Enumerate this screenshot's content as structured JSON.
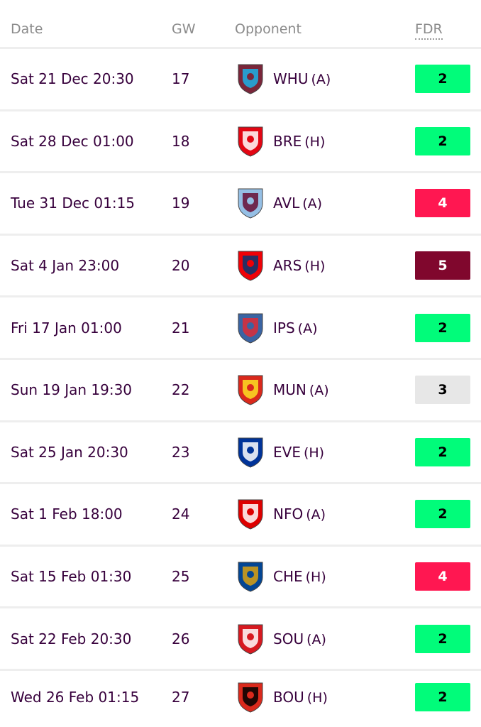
{
  "headers": {
    "date": "Date",
    "gw": "GW",
    "opponent": "Opponent",
    "fdr": "FDR"
  },
  "fdr_colors": {
    "2": "#01fc7a",
    "3": "#e7e7e7",
    "4": "#ff1751",
    "5": "#80072d"
  },
  "fdr_text": {
    "2": "#000000",
    "3": "#000000",
    "4": "#ffffff",
    "5": "#ffffff"
  },
  "fixtures": [
    {
      "date": "Sat 21 Dec 20:30",
      "gw": "17",
      "team": "WHU",
      "venue": "(A)",
      "fdr": "2",
      "badge": "west-ham-badge-icon",
      "badge_color": "#7a263a",
      "badge_accent": "#1bb1e7"
    },
    {
      "date": "Sat 28 Dec 01:00",
      "gw": "18",
      "team": "BRE",
      "venue": "(H)",
      "fdr": "2",
      "badge": "brentford-badge-icon",
      "badge_color": "#e30613",
      "badge_accent": "#ffffff"
    },
    {
      "date": "Tue 31 Dec 01:15",
      "gw": "19",
      "team": "AVL",
      "venue": "(A)",
      "fdr": "4",
      "badge": "aston-villa-badge-icon",
      "badge_color": "#95bfe5",
      "badge_accent": "#670e36"
    },
    {
      "date": "Sat 4 Jan 23:00",
      "gw": "20",
      "team": "ARS",
      "venue": "(H)",
      "fdr": "5",
      "badge": "arsenal-badge-icon",
      "badge_color": "#ef0107",
      "badge_accent": "#063672"
    },
    {
      "date": "Fri 17 Jan 01:00",
      "gw": "21",
      "team": "IPS",
      "venue": "(A)",
      "fdr": "2",
      "badge": "ipswich-badge-icon",
      "badge_color": "#3a64a3",
      "badge_accent": "#de2c37"
    },
    {
      "date": "Sun 19 Jan 19:30",
      "gw": "22",
      "team": "MUN",
      "venue": "(A)",
      "fdr": "3",
      "badge": "man-utd-badge-icon",
      "badge_color": "#da291c",
      "badge_accent": "#fbe122"
    },
    {
      "date": "Sat 25 Jan 20:30",
      "gw": "23",
      "team": "EVE",
      "venue": "(H)",
      "fdr": "2",
      "badge": "everton-badge-icon",
      "badge_color": "#003399",
      "badge_accent": "#ffffff"
    },
    {
      "date": "Sat 1 Feb 18:00",
      "gw": "24",
      "team": "NFO",
      "venue": "(A)",
      "fdr": "2",
      "badge": "nottingham-forest-badge-icon",
      "badge_color": "#dd0000",
      "badge_accent": "#ffffff"
    },
    {
      "date": "Sat 15 Feb 01:30",
      "gw": "25",
      "team": "CHE",
      "venue": "(H)",
      "fdr": "4",
      "badge": "chelsea-badge-icon",
      "badge_color": "#034694",
      "badge_accent": "#dba111"
    },
    {
      "date": "Sat 22 Feb 20:30",
      "gw": "26",
      "team": "SOU",
      "venue": "(A)",
      "fdr": "2",
      "badge": "southampton-badge-icon",
      "badge_color": "#d71920",
      "badge_accent": "#ffffff"
    },
    {
      "date": "Wed 26 Feb 01:15",
      "gw": "27",
      "team": "BOU",
      "venue": "(H)",
      "fdr": "2",
      "badge": "bournemouth-badge-icon",
      "badge_color": "#da291c",
      "badge_accent": "#000000"
    }
  ]
}
